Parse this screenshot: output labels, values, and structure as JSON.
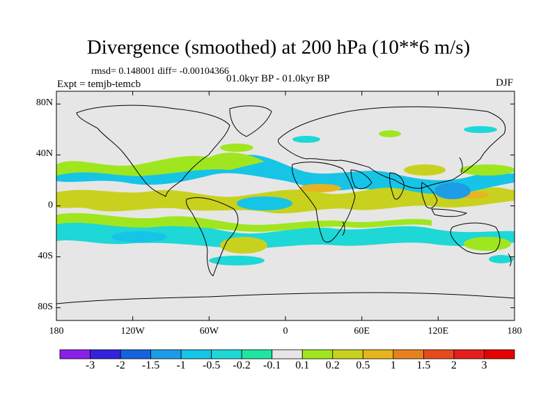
{
  "chart_data": {
    "type": "heatmap",
    "title": "Divergence (smoothed) at 200 hPa (10**6 m/s)",
    "stats_line": "rmsd= 0.148001 diff= -0.00104366",
    "left_label": "Expt = temjb-temcb",
    "center_label": "01.0kyr BP - 01.0kyr BP",
    "right_label": "DJF",
    "lat_ticks": [
      "80N",
      "40N",
      "0",
      "40S",
      "80S"
    ],
    "lat_values": [
      80,
      40,
      0,
      -40,
      -80
    ],
    "lon_ticks": [
      "180",
      "120W",
      "60W",
      "0",
      "60E",
      "120E",
      "180"
    ],
    "lon_values": [
      -180,
      -120,
      -60,
      0,
      60,
      120,
      180
    ],
    "xlim": [
      -180,
      180
    ],
    "ylim": [
      -90,
      90
    ],
    "colorbar_labels": [
      "-3",
      "-2",
      "-1.5",
      "-1",
      "-0.5",
      "-0.2",
      "-0.1",
      "0.1",
      "0.2",
      "0.5",
      "1",
      "1.5",
      "2",
      "3"
    ],
    "colorbar_colors": [
      "#8c1fe6",
      "#3522dc",
      "#1463dc",
      "#1e9ce6",
      "#16c4e6",
      "#1ed7d7",
      "#1ee6a0",
      "#e6e6e6",
      "#a0e61e",
      "#c8d21e",
      "#e6b41e",
      "#e6821e",
      "#e64b1e",
      "#e61e1e",
      "#e60000"
    ]
  }
}
